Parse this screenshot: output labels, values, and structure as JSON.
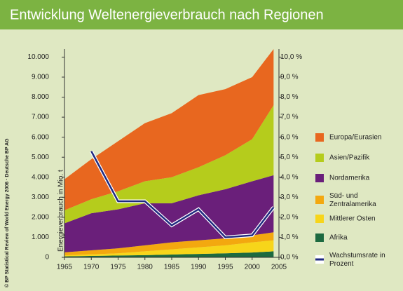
{
  "chart_data": {
    "type": "area",
    "title": "Entwicklung Weltenergieverbrauch nach Regionen",
    "y_label": "Energieverbrauch in Mio. t",
    "source": "© BP Statistical Review of World Energy 2006 · Deutsche BP AG",
    "x": [
      1965,
      1970,
      1975,
      1980,
      1985,
      1990,
      1995,
      2000,
      2004
    ],
    "series": [
      {
        "name": "Europa/Eurasien",
        "color": "#e8671f",
        "values": [
          1550,
          2000,
          2500,
          2900,
          3200,
          3600,
          3300,
          3100,
          2800
        ]
      },
      {
        "name": "Asien/Pazifik",
        "color": "#b5cc1c",
        "values": [
          650,
          700,
          900,
          1100,
          1300,
          1400,
          1700,
          2100,
          3500
        ]
      },
      {
        "name": "Nordamerika",
        "color": "#6a1f7a",
        "values": [
          1450,
          1850,
          1950,
          2100,
          1950,
          2250,
          2450,
          2700,
          2850
        ]
      },
      {
        "name": "Süd- und Zentralamerika",
        "color": "#f3a80f",
        "values": [
          150,
          200,
          250,
          300,
          350,
          350,
          350,
          350,
          400
        ]
      },
      {
        "name": "Mittlerer Osten",
        "color": "#f7d51a",
        "values": [
          50,
          80,
          110,
          190,
          260,
          330,
          400,
          510,
          550
        ]
      },
      {
        "name": "Afrika",
        "color": "#1d6a40",
        "values": [
          50,
          70,
          90,
          110,
          140,
          170,
          200,
          240,
          300
        ]
      },
      {
        "name": "Wachstumsrate in Prozent",
        "color": "#1f2a80",
        "type": "line",
        "axis": "y2",
        "values": [
          null,
          5.3,
          2.8,
          2.8,
          1.6,
          2.4,
          1.0,
          1.1,
          2.5
        ]
      }
    ],
    "xlim": [
      1965,
      2005
    ],
    "xticks": [
      1965,
      1970,
      1975,
      1980,
      1985,
      1990,
      1995,
      2000,
      2005
    ],
    "ylim": [
      0,
      10400
    ],
    "yticks": [
      0,
      {
        "value": 1000,
        "label": "1.000"
      },
      {
        "value": 2000,
        "label": "2.000"
      },
      {
        "value": 3000,
        "label": "3.000"
      },
      {
        "value": 4000,
        "label": "4.000"
      },
      {
        "value": 5000,
        "label": "5.000"
      },
      {
        "value": 6000,
        "label": "6.000"
      },
      {
        "value": 7000,
        "label": "7.000"
      },
      {
        "value": 8000,
        "label": "8.000"
      },
      {
        "value": 9000,
        "label": "9.000"
      },
      {
        "value": 10000,
        "label": "10.000"
      }
    ],
    "y2lim": [
      0,
      10.4
    ],
    "y2ticks": [
      {
        "value": 0,
        "label": "0,0 %"
      },
      {
        "value": 1,
        "label": "1,0 %"
      },
      {
        "value": 2,
        "label": "2,0 %"
      },
      {
        "value": 3,
        "label": "3,0 %"
      },
      {
        "value": 4,
        "label": "4,0 %"
      },
      {
        "value": 5,
        "label": "5,0 %"
      },
      {
        "value": 6,
        "label": "6,0 %"
      },
      {
        "value": 7,
        "label": "7,0 %"
      },
      {
        "value": 8,
        "label": "8,0 %"
      },
      {
        "value": 9,
        "label": "9,0 %"
      },
      {
        "value": 10,
        "label": "10,0 %"
      }
    ]
  }
}
